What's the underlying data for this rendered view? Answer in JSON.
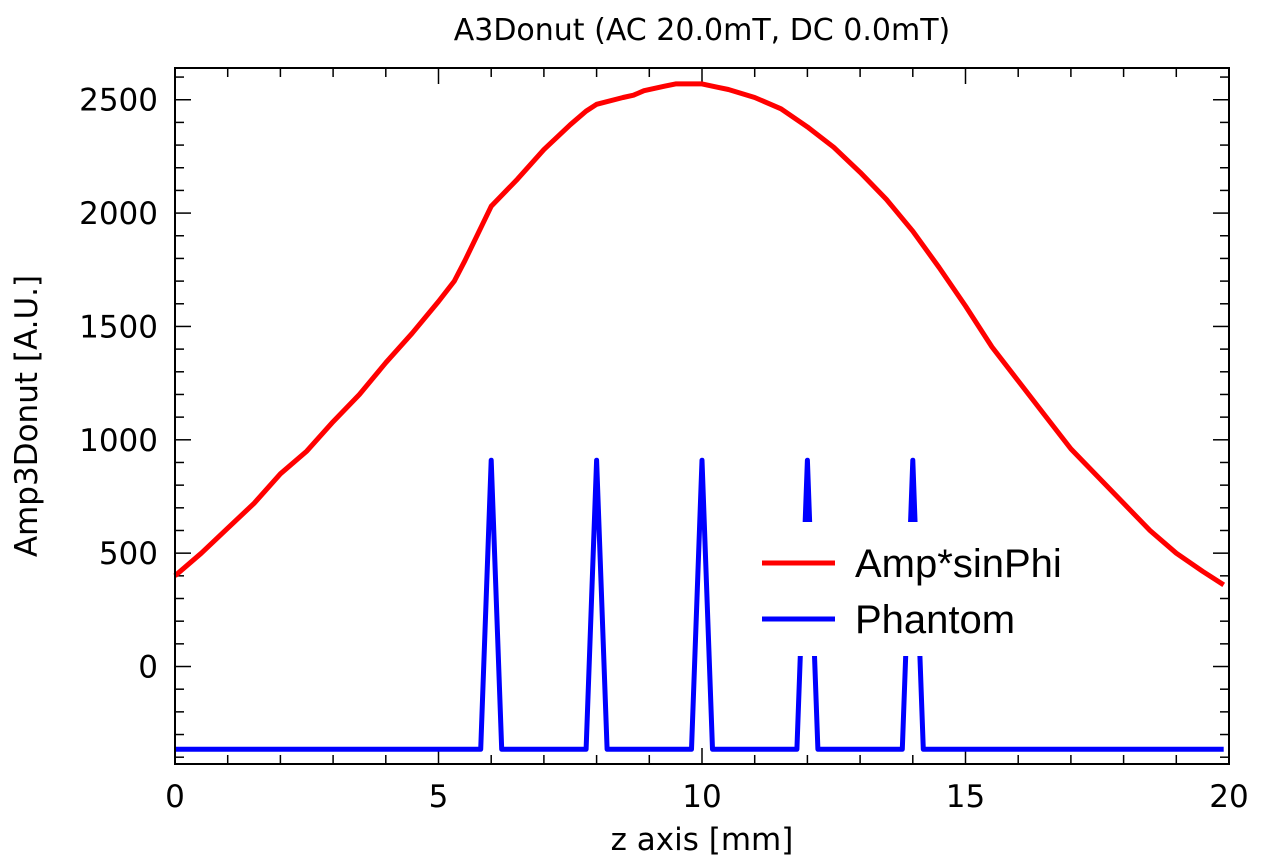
{
  "chart_data": {
    "type": "line",
    "title": "A3Donut (AC 20.0mT, DC  0.0mT)",
    "xlabel": "z axis [mm]",
    "ylabel": "Amp3Donut [A.U.]",
    "xlim": [
      0,
      20
    ],
    "ylim": [
      -430,
      2640
    ],
    "x_ticks": [
      0,
      5,
      10,
      15,
      20
    ],
    "y_ticks": [
      0,
      500,
      1000,
      1500,
      2000,
      2500
    ],
    "legend_position": "center-right",
    "series": [
      {
        "name": "Amp*sinPhi",
        "color": "#ff0000",
        "x": [
          0,
          0.5,
          1,
          1.5,
          2,
          2.5,
          3,
          3.5,
          4,
          4.5,
          5,
          5.3,
          5.5,
          6,
          6.5,
          7,
          7.5,
          7.8,
          8,
          8.5,
          8.7,
          8.9,
          9.3,
          9.5,
          10,
          10.3,
          10.5,
          11,
          11.5,
          12,
          12.5,
          13,
          13.5,
          14,
          14.5,
          15,
          15.5,
          16,
          16.5,
          17,
          17.5,
          18,
          18.5,
          19,
          19.5,
          19.9
        ],
        "values": [
          400,
          500,
          610,
          720,
          850,
          950,
          1080,
          1200,
          1340,
          1470,
          1610,
          1700,
          1790,
          2030,
          2150,
          2280,
          2390,
          2450,
          2480,
          2510,
          2520,
          2540,
          2560,
          2570,
          2570,
          2555,
          2545,
          2510,
          2460,
          2380,
          2290,
          2180,
          2060,
          1920,
          1760,
          1590,
          1410,
          1260,
          1110,
          960,
          840,
          720,
          600,
          500,
          420,
          360
        ]
      },
      {
        "name": "Phantom",
        "color": "#0000ff",
        "x": [
          0,
          5.8,
          6.0,
          6.2,
          7.8,
          8.0,
          8.2,
          9.8,
          10.0,
          10.2,
          11.8,
          12.0,
          12.2,
          13.8,
          14.0,
          14.2,
          19.9
        ],
        "values": [
          -365,
          -365,
          910,
          -365,
          -365,
          910,
          -365,
          -365,
          910,
          -365,
          -365,
          910,
          -365,
          -365,
          910,
          -365,
          -365
        ]
      }
    ]
  }
}
